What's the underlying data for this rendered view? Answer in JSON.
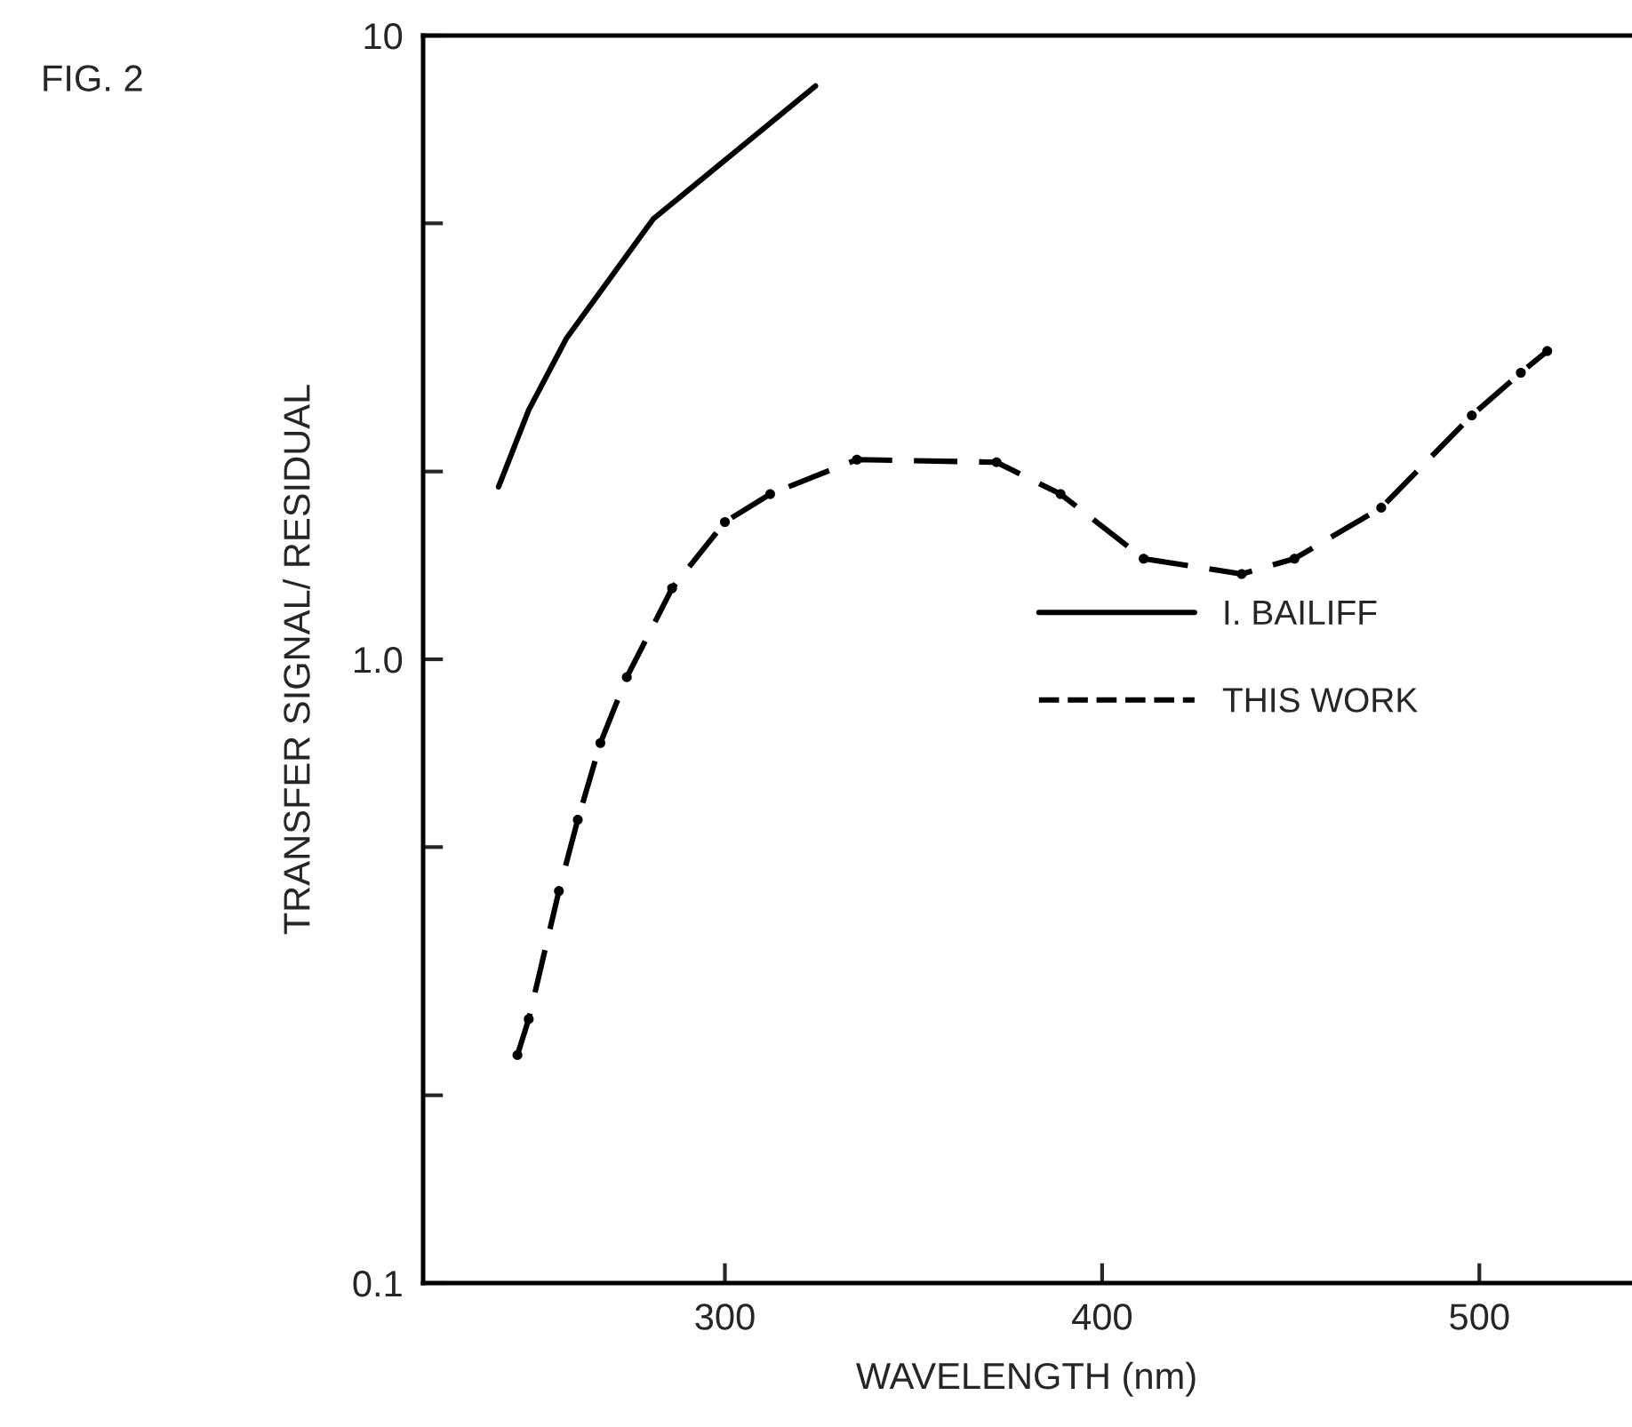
{
  "chart_data": {
    "type": "line",
    "title": "FIG. 2",
    "xlabel": "WAVELENGTH (nm)",
    "ylabel": "TRANSFER SIGNAL/ RESIDUAL",
    "log": true,
    "xlim": [
      220,
      540
    ],
    "ylim": [
      0.1,
      10
    ],
    "xticks": [
      300,
      400,
      500
    ],
    "yticks": [
      {
        "value": 0.1,
        "label": "0.1"
      },
      {
        "value": 0.2,
        "label": null
      },
      {
        "value": 0.5,
        "label": null
      },
      {
        "value": 1,
        "label": "1.0"
      },
      {
        "value": 2,
        "label": null
      },
      {
        "value": 5,
        "label": null
      },
      {
        "value": 10,
        "label": "10"
      }
    ],
    "legend": "center right",
    "grid": false,
    "series": [
      {
        "name": "I. BAILIFF",
        "color": "#000000",
        "line_style": "solid",
        "marker": "none",
        "x": [
          240,
          248,
          258,
          281,
          300,
          324
        ],
        "values": [
          1.89,
          2.51,
          3.27,
          5.08,
          6.31,
          8.3
        ]
      },
      {
        "name": "THIS WORK",
        "color": "#000000",
        "line_style": "dashed",
        "marker": "circle",
        "x": [
          245,
          248,
          256,
          261,
          267,
          274,
          286,
          300,
          312,
          335,
          372,
          389,
          411,
          437,
          451,
          474,
          498,
          511,
          518
        ],
        "values": [
          0.232,
          0.265,
          0.425,
          0.553,
          0.734,
          0.936,
          1.3,
          1.66,
          1.84,
          2.09,
          2.07,
          1.84,
          1.45,
          1.37,
          1.45,
          1.75,
          2.46,
          2.88,
          3.12
        ]
      }
    ]
  }
}
